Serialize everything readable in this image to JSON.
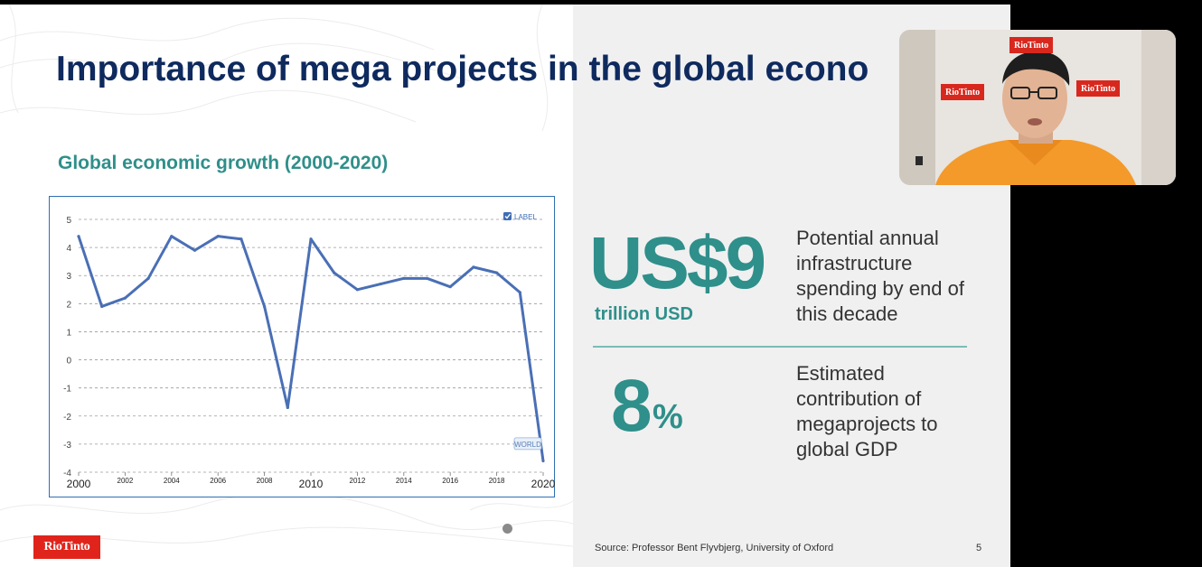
{
  "slide": {
    "title": "Importance of mega projects in the global econo",
    "subtitle": "Global economic growth (2000-2020)",
    "stat1": {
      "value": "US$9",
      "unit": "trillion USD",
      "description": "Potential annual infrastructure spending by end of this decade"
    },
    "stat2": {
      "value": "8",
      "unit": "%",
      "description": "Estimated contribution of megaprojects to global GDP"
    },
    "source": "Source: Professor Bent Flyvbjerg, University of Oxford",
    "page_number": "5",
    "logo_text": "RioTinto",
    "colors": {
      "title": "#0e2a5e",
      "accent": "#2f8f8a",
      "line": "#4a6fb5",
      "logo": "#e0241b"
    }
  },
  "webcam": {
    "background_tags": [
      "RioTinto",
      "RioTinto",
      "RioTinto"
    ]
  },
  "chart_data": {
    "type": "line",
    "x": [
      2000,
      2001,
      2002,
      2003,
      2004,
      2005,
      2006,
      2007,
      2008,
      2009,
      2010,
      2011,
      2012,
      2013,
      2014,
      2015,
      2016,
      2017,
      2018,
      2019,
      2020
    ],
    "xticks": [
      "2000",
      "2002",
      "2004",
      "2006",
      "2008",
      "2010",
      "2012",
      "2014",
      "2016",
      "2018",
      "2020"
    ],
    "major_xticks": [
      "2000",
      "2010",
      "2020"
    ],
    "series": [
      {
        "name": "WORLD",
        "values": [
          4.4,
          1.9,
          2.2,
          2.9,
          4.4,
          3.9,
          4.4,
          4.3,
          1.9,
          -1.7,
          4.3,
          3.1,
          2.5,
          2.7,
          2.9,
          2.9,
          2.6,
          3.3,
          3.1,
          2.4,
          -3.6
        ]
      }
    ],
    "yticks": [
      "5",
      "4",
      "3",
      "2",
      "1",
      "0",
      "-1",
      "-2",
      "-3",
      "-4"
    ],
    "ylim": [
      -4,
      5
    ],
    "xlim": [
      2000,
      2020
    ],
    "legend_label": "LABEL",
    "grid": true
  }
}
